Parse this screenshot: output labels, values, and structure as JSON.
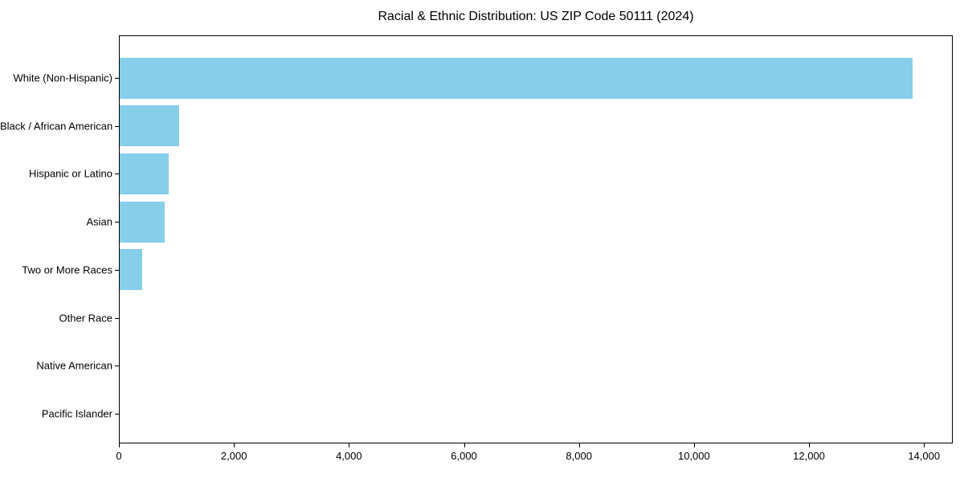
{
  "chart_data": {
    "type": "bar",
    "orientation": "horizontal",
    "title": "Racial & Ethnic Distribution: US ZIP Code 50111 (2024)",
    "categories": [
      "White (Non-Hispanic)",
      "Black / African American",
      "Hispanic or Latino",
      "Asian",
      "Two or More Races",
      "Other Race",
      "Native American",
      "Pacific Islander"
    ],
    "values": [
      13820,
      1040,
      860,
      780,
      390,
      0,
      0,
      0
    ],
    "xlabel": "",
    "ylabel": "",
    "xlim": [
      0,
      14500
    ],
    "x_ticks": [
      0,
      2000,
      4000,
      6000,
      8000,
      10000,
      12000,
      14000
    ],
    "x_tick_labels": [
      "0",
      "2,000",
      "4,000",
      "6,000",
      "8,000",
      "10,000",
      "12,000",
      "14,000"
    ],
    "bar_color": "#87CEEB",
    "axis_color": "#000000",
    "text_color": "#000000",
    "background_color": "#FFFFFF",
    "grid": false,
    "legend": null
  }
}
